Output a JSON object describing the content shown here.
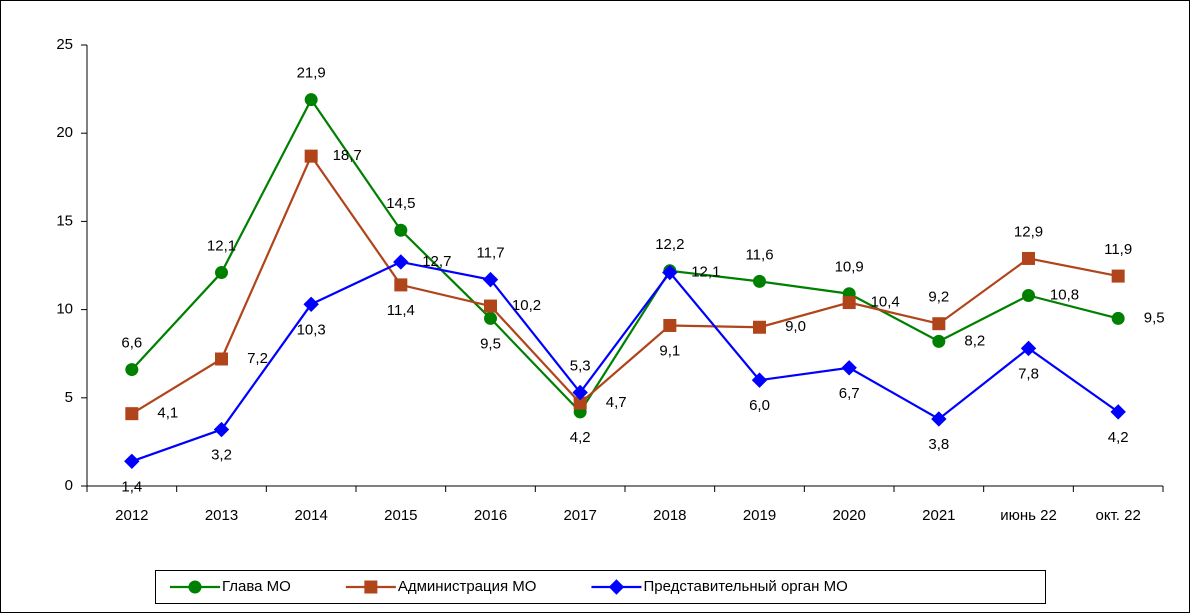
{
  "chart_data": {
    "type": "line",
    "categories": [
      "2012",
      "2013",
      "2014",
      "2015",
      "2016",
      "2017",
      "2018",
      "2019",
      "2020",
      "2021",
      "июнь 22",
      "окт. 22"
    ],
    "series": [
      {
        "name": "Глава МО",
        "color": "#008000",
        "marker": "circle",
        "values": [
          6.6,
          12.1,
          21.9,
          14.5,
          9.5,
          4.2,
          12.2,
          11.6,
          10.9,
          8.2,
          10.8,
          9.5
        ],
        "value_labels": [
          "6,6",
          "12,1",
          "21,9",
          "14,5",
          "9,5",
          "4,2",
          "12,2",
          "11,6",
          "10,9",
          "8,2",
          "10,8",
          "9,5"
        ]
      },
      {
        "name": "Администрация МО",
        "color": "#b0441a",
        "marker": "square",
        "values": [
          4.1,
          7.2,
          18.7,
          11.4,
          10.2,
          4.7,
          9.1,
          9.0,
          10.4,
          9.2,
          12.9,
          11.9
        ],
        "value_labels": [
          "4,1",
          "7,2",
          "18,7",
          "11,4",
          "10,2",
          "4,7",
          "9,1",
          "9,0",
          "10,4",
          "9,2",
          "12,9",
          "11,9"
        ]
      },
      {
        "name": "Представительный орган МО",
        "color": "#0000ff",
        "marker": "diamond",
        "values": [
          1.4,
          3.2,
          10.3,
          12.7,
          11.7,
          5.3,
          12.1,
          6.0,
          6.7,
          3.8,
          7.8,
          4.2
        ],
        "value_labels": [
          "1,4",
          "3,2",
          "10,3",
          "12,7",
          "11,7",
          "5,3",
          "12,1",
          "6,0",
          "6,7",
          "3,8",
          "7,8",
          "4,2"
        ]
      }
    ],
    "ylim": [
      0,
      25
    ],
    "yticks": [
      0,
      5,
      10,
      15,
      20,
      25
    ],
    "grid": false,
    "legend": "bottom"
  }
}
